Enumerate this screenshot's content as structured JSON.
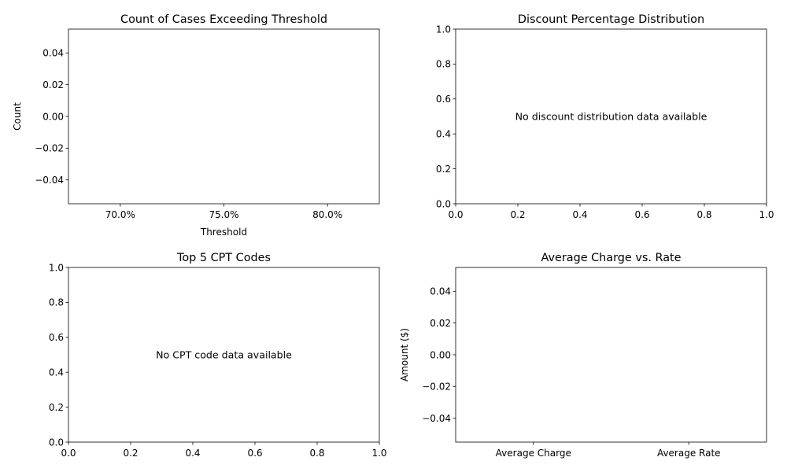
{
  "chart_data": [
    {
      "type": "bar",
      "title": "Count of Cases Exceeding Threshold",
      "xlabel": "Threshold",
      "ylabel": "Count",
      "categories": [
        "70.0%",
        "75.0%",
        "80.0%"
      ],
      "values": [
        0,
        0,
        0
      ],
      "ylim": [
        -0.055,
        0.055
      ],
      "yticks": [
        "0.04",
        "0.02",
        "0.00",
        "−0.02",
        "−0.04"
      ],
      "ytick_values": [
        0.04,
        0.02,
        0.0,
        -0.02,
        -0.04
      ],
      "grid": false
    },
    {
      "type": "bar",
      "title": "Discount Percentage Distribution",
      "xlabel": "",
      "ylabel": "",
      "message": "No discount distribution data available",
      "xlim": [
        0,
        1
      ],
      "ylim": [
        0,
        1
      ],
      "xticks": [
        "0.0",
        "0.2",
        "0.4",
        "0.6",
        "0.8",
        "1.0"
      ],
      "yticks": [
        "0.0",
        "0.2",
        "0.4",
        "0.6",
        "0.8",
        "1.0"
      ],
      "grid": false
    },
    {
      "type": "bar",
      "title": "Top 5 CPT Codes",
      "xlabel": "",
      "ylabel": "",
      "message": "No CPT code data available",
      "xlim": [
        0,
        1
      ],
      "ylim": [
        0,
        1
      ],
      "xticks": [
        "0.0",
        "0.2",
        "0.4",
        "0.6",
        "0.8",
        "1.0"
      ],
      "yticks": [
        "0.0",
        "0.2",
        "0.4",
        "0.6",
        "0.8",
        "1.0"
      ],
      "grid": false
    },
    {
      "type": "bar",
      "title": "Average Charge vs. Rate",
      "xlabel": "",
      "ylabel": "Amount ($)",
      "categories": [
        "Average Charge",
        "Average Rate"
      ],
      "values": [
        0,
        0
      ],
      "ylim": [
        -0.055,
        0.055
      ],
      "yticks": [
        "0.04",
        "0.02",
        "0.00",
        "−0.02",
        "−0.04"
      ],
      "ytick_values": [
        0.04,
        0.02,
        0.0,
        -0.02,
        -0.04
      ],
      "grid": false
    }
  ]
}
